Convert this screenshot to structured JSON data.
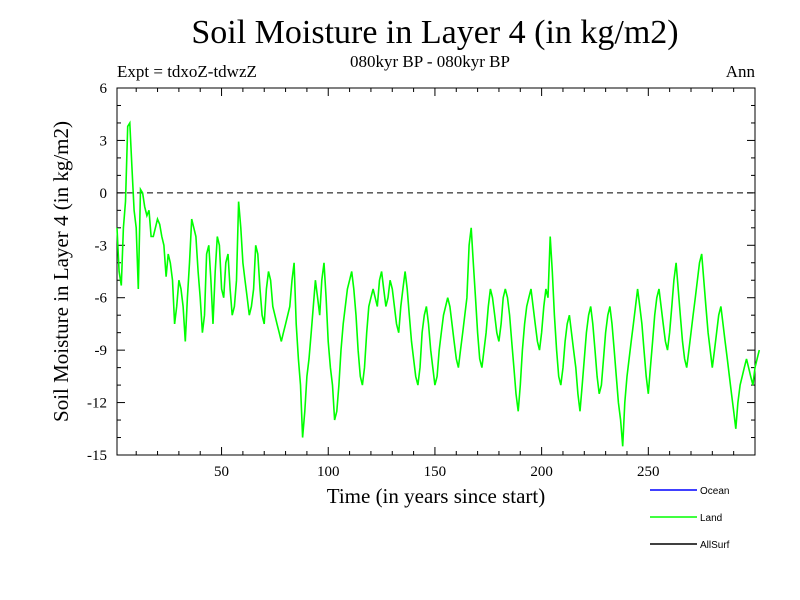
{
  "chart_data": {
    "type": "line",
    "title": "Soil Moisture in Layer 4 (in kg/m2)",
    "subtitle": "080kyr BP - 080kyr BP",
    "experiment": "Expt = tdxoZ-tdwzZ",
    "period": "Ann",
    "xlabel": "Time (in years since start)",
    "ylabel": "Soil Moisture in Layer 4 (in kg/m2)",
    "xlim": [
      1,
      300
    ],
    "ylim": [
      -15,
      6
    ],
    "xticks": [
      50,
      100,
      150,
      200,
      250
    ],
    "yticks": [
      6,
      3,
      0,
      -3,
      -6,
      -9,
      -12,
      -15
    ],
    "zero_line": true,
    "legend_position": "bottom-right",
    "legend": [
      {
        "name": "Ocean",
        "color": "#0000ff"
      },
      {
        "name": "Land",
        "color": "#00ff00"
      },
      {
        "name": "AllSurf",
        "color": "#000000"
      }
    ],
    "series": [
      {
        "name": "Land",
        "color": "#00ff00",
        "x_start": 1,
        "x_step": 1,
        "values": [
          -2.0,
          -4.5,
          -5.3,
          -2.0,
          -0.5,
          3.8,
          4.0,
          1.5,
          -1.0,
          -2.0,
          -5.5,
          0.2,
          0.0,
          -0.8,
          -1.3,
          -1.0,
          -2.5,
          -2.5,
          -2.0,
          -1.5,
          -1.8,
          -2.5,
          -3.0,
          -4.8,
          -3.5,
          -4.0,
          -5.0,
          -7.5,
          -6.5,
          -5.0,
          -5.5,
          -6.5,
          -8.5,
          -6.0,
          -4.0,
          -1.5,
          -2.0,
          -2.5,
          -4.5,
          -6.0,
          -8.0,
          -7.0,
          -3.5,
          -3.0,
          -5.0,
          -7.5,
          -4.5,
          -2.5,
          -3.0,
          -5.5,
          -6.0,
          -4.0,
          -3.5,
          -5.5,
          -7.0,
          -6.5,
          -5.0,
          -0.5,
          -2.0,
          -4.0,
          -5.0,
          -6.0,
          -7.0,
          -6.5,
          -5.5,
          -3.0,
          -3.5,
          -5.5,
          -7.0,
          -7.5,
          -5.5,
          -4.5,
          -5.0,
          -6.5,
          -7.0,
          -7.5,
          -8.0,
          -8.5,
          -8.0,
          -7.5,
          -7.0,
          -6.5,
          -5.0,
          -4.0,
          -7.5,
          -9.5,
          -11.0,
          -14.0,
          -12.5,
          -10.5,
          -9.5,
          -8.0,
          -6.5,
          -5.0,
          -6.0,
          -7.0,
          -5.0,
          -4.0,
          -6.0,
          -8.5,
          -10.0,
          -11.0,
          -13.0,
          -12.5,
          -11.0,
          -9.0,
          -7.5,
          -6.5,
          -5.5,
          -5.0,
          -4.5,
          -5.5,
          -7.0,
          -9.0,
          -10.5,
          -11.0,
          -10.0,
          -8.0,
          -6.5,
          -6.0,
          -5.5,
          -6.0,
          -6.5,
          -5.0,
          -4.5,
          -5.5,
          -6.5,
          -6.0,
          -5.0,
          -5.5,
          -6.5,
          -7.5,
          -8.0,
          -6.5,
          -5.5,
          -4.5,
          -5.5,
          -7.0,
          -8.5,
          -9.5,
          -10.5,
          -11.0,
          -10.0,
          -8.0,
          -7.0,
          -6.5,
          -7.5,
          -9.0,
          -10.0,
          -11.0,
          -10.5,
          -9.0,
          -8.0,
          -7.0,
          -6.5,
          -6.0,
          -6.5,
          -7.5,
          -8.5,
          -9.5,
          -10.0,
          -9.0,
          -8.0,
          -7.0,
          -6.0,
          -3.0,
          -2.0,
          -4.0,
          -6.0,
          -8.0,
          -9.5,
          -10.0,
          -9.0,
          -8.0,
          -6.5,
          -5.5,
          -6.0,
          -7.0,
          -8.0,
          -8.5,
          -7.5,
          -6.0,
          -5.5,
          -6.0,
          -7.0,
          -8.5,
          -10.0,
          -11.5,
          -12.5,
          -11.0,
          -9.0,
          -7.5,
          -6.5,
          -6.0,
          -5.5,
          -6.5,
          -7.5,
          -8.5,
          -9.0,
          -8.0,
          -6.5,
          -5.5,
          -6.0,
          -2.5,
          -4.5,
          -7.0,
          -9.0,
          -10.5,
          -11.0,
          -10.0,
          -8.5,
          -7.5,
          -7.0,
          -8.0,
          -9.0,
          -10.0,
          -11.5,
          -12.5,
          -11.0,
          -9.5,
          -8.0,
          -7.0,
          -6.5,
          -7.5,
          -9.0,
          -10.5,
          -11.5,
          -11.0,
          -9.5,
          -8.0,
          -7.0,
          -6.5,
          -7.5,
          -9.0,
          -10.5,
          -12.0,
          -13.0,
          -14.5,
          -12.0,
          -10.5,
          -9.5,
          -8.5,
          -7.5,
          -6.5,
          -5.5,
          -6.5,
          -7.5,
          -9.0,
          -10.5,
          -11.5,
          -10.0,
          -8.5,
          -7.0,
          -6.0,
          -5.5,
          -6.5,
          -7.5,
          -8.5,
          -9.0,
          -8.0,
          -6.5,
          -5.0,
          -4.0,
          -5.5,
          -7.0,
          -8.5,
          -9.5,
          -10.0,
          -9.0,
          -8.0,
          -7.0,
          -6.0,
          -5.0,
          -4.0,
          -3.5,
          -5.0,
          -6.5,
          -8.0,
          -9.0,
          -10.0,
          -9.0,
          -8.0,
          -7.0,
          -6.5,
          -7.5,
          -8.5,
          -9.5,
          -10.5,
          -11.5,
          -12.5,
          -13.5,
          -12.0,
          -11.0,
          -10.5,
          -10.0,
          -9.5,
          -10.0,
          -10.5,
          -11.0,
          -10.0,
          -9.5,
          -9.0
        ]
      }
    ]
  }
}
